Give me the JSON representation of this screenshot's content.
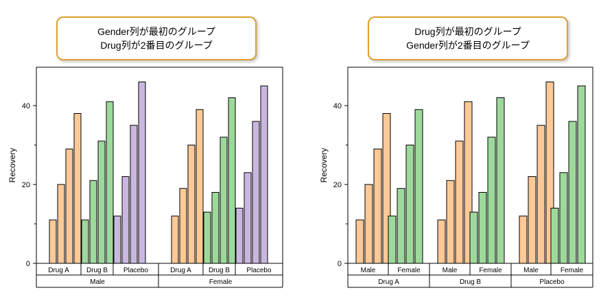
{
  "callouts": {
    "left": {
      "line1": "Gender列が最初のグループ",
      "line2": "Drug列が2番目のグループ"
    },
    "right": {
      "line1": "Drug列が最初のグループ",
      "line2": "Gender列が2番目のグループ"
    }
  },
  "colors": {
    "drug_a": "#FCC997",
    "drug_b": "#9ED99C",
    "placebo": "#C9B7E0",
    "callout_border": "#E0A030"
  },
  "chart_data": [
    {
      "type": "bar",
      "ylabel": "Recovery",
      "yticks": [
        0,
        20,
        40
      ],
      "ylim": [
        0,
        50
      ],
      "grid": false,
      "outer_groups": [
        "Male",
        "Female"
      ],
      "inner_groups": [
        "Drug A",
        "Drug B",
        "Placebo"
      ],
      "groups": [
        {
          "outer": "Male",
          "inner": "Drug A",
          "color": "drug_a",
          "values": [
            11,
            20,
            29,
            38
          ]
        },
        {
          "outer": "Male",
          "inner": "Drug B",
          "color": "drug_b",
          "values": [
            11,
            21,
            31,
            41
          ]
        },
        {
          "outer": "Male",
          "inner": "Placebo",
          "color": "placebo",
          "values": [
            12,
            22,
            35,
            46
          ]
        },
        {
          "outer": "Female",
          "inner": "Drug A",
          "color": "drug_a",
          "values": [
            12,
            19,
            30,
            39
          ]
        },
        {
          "outer": "Female",
          "inner": "Drug B",
          "color": "drug_b",
          "values": [
            13,
            18,
            32,
            42
          ]
        },
        {
          "outer": "Female",
          "inner": "Placebo",
          "color": "placebo",
          "values": [
            14,
            23,
            36,
            45
          ]
        }
      ]
    },
    {
      "type": "bar",
      "ylabel": "Recovery",
      "yticks": [
        0,
        20,
        40
      ],
      "ylim": [
        0,
        50
      ],
      "grid": false,
      "outer_groups": [
        "Drug A",
        "Drug B",
        "Placebo"
      ],
      "inner_groups": [
        "Male",
        "Female"
      ],
      "groups": [
        {
          "outer": "Drug A",
          "inner": "Male",
          "color": "drug_a",
          "values": [
            11,
            20,
            29,
            38
          ]
        },
        {
          "outer": "Drug A",
          "inner": "Female",
          "color": "drug_b",
          "values": [
            12,
            19,
            30,
            39
          ]
        },
        {
          "outer": "Drug B",
          "inner": "Male",
          "color": "drug_a",
          "values": [
            11,
            21,
            31,
            41
          ]
        },
        {
          "outer": "Drug B",
          "inner": "Female",
          "color": "drug_b",
          "values": [
            13,
            18,
            32,
            42
          ]
        },
        {
          "outer": "Placebo",
          "inner": "Male",
          "color": "drug_a",
          "values": [
            12,
            22,
            35,
            46
          ]
        },
        {
          "outer": "Placebo",
          "inner": "Female",
          "color": "drug_b",
          "values": [
            14,
            23,
            36,
            45
          ]
        }
      ]
    }
  ]
}
